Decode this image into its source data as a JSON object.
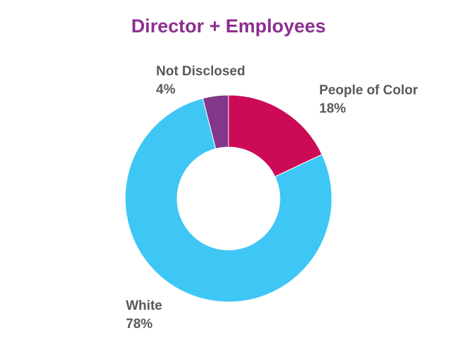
{
  "chart_data": {
    "type": "donut",
    "title": "Director + Employees",
    "slices": [
      {
        "label": "People of Color",
        "value": 18,
        "display": "18%",
        "color": "#cc0a55"
      },
      {
        "label": "White",
        "value": 78,
        "display": "78%",
        "color": "#3ec7f4"
      },
      {
        "label": "Not Disclosed",
        "value": 4,
        "display": "4%",
        "color": "#833788"
      }
    ],
    "start": "12 o'clock",
    "direction": "clockwise",
    "legend": "none (labels beside slices)"
  }
}
